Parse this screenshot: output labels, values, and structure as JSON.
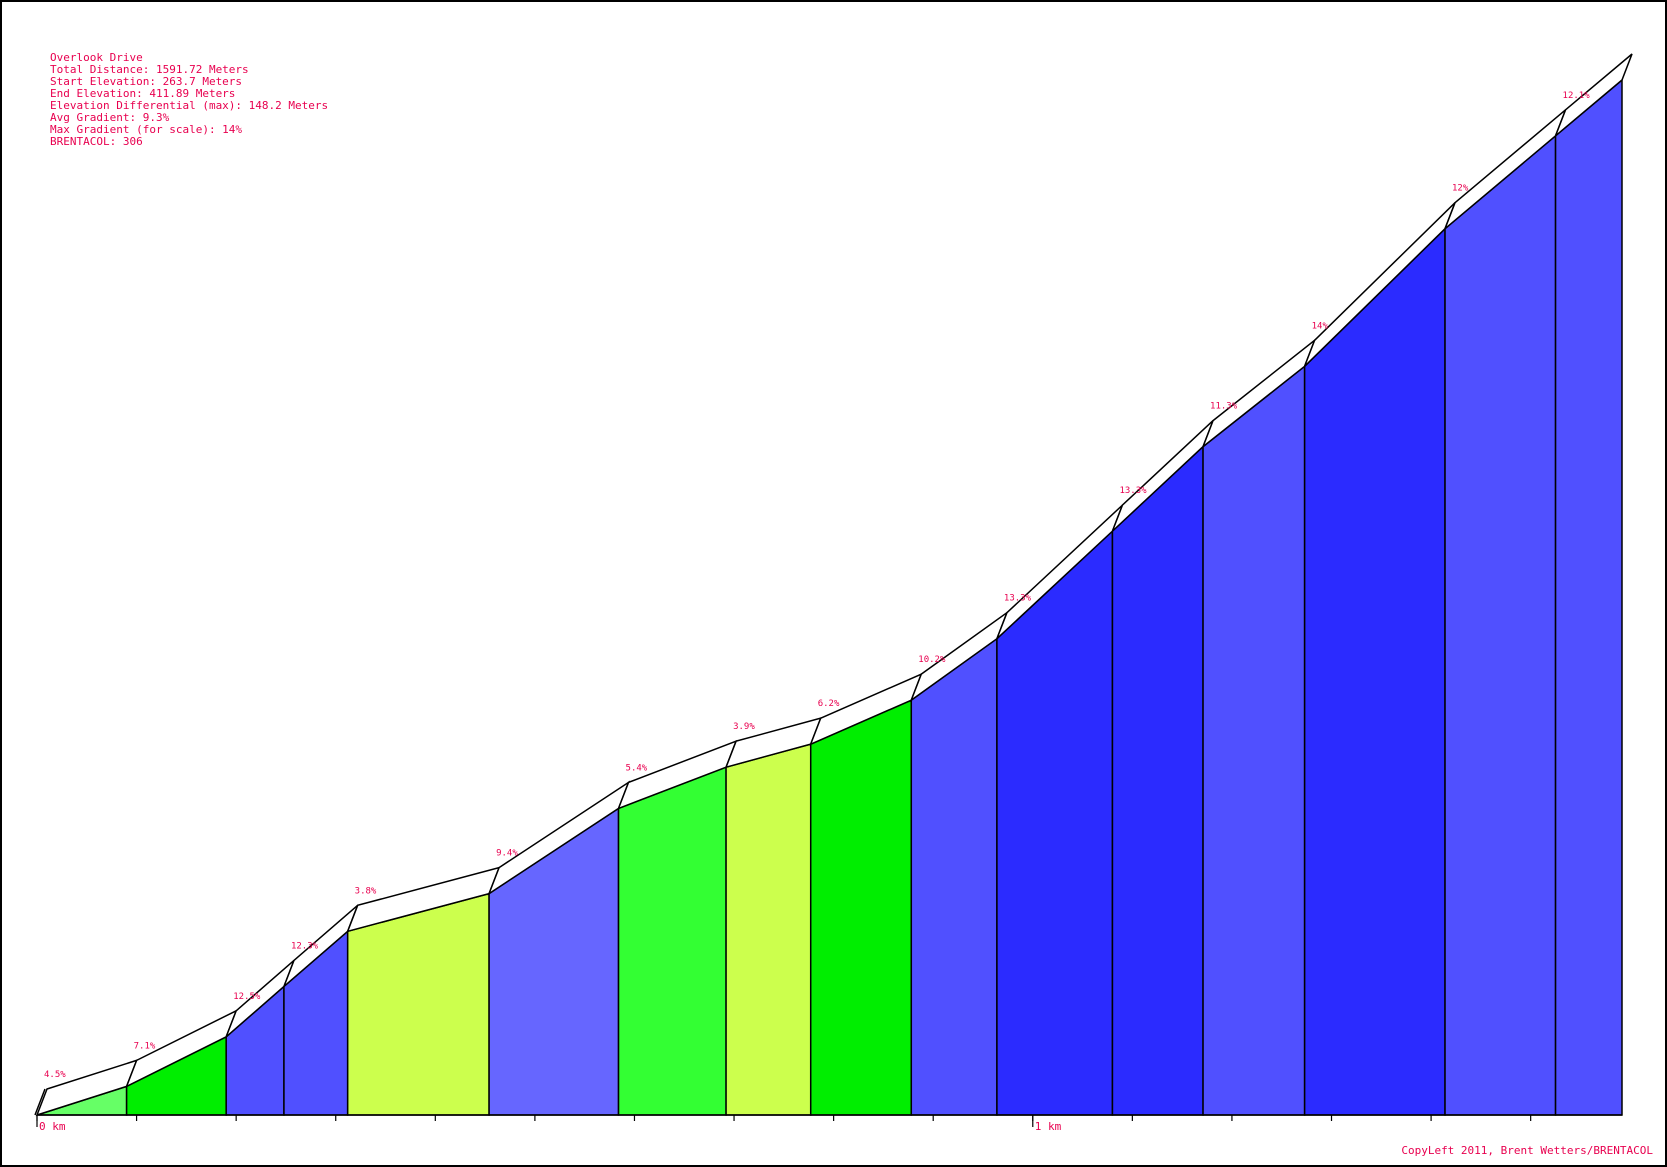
{
  "info": {
    "title": "Overlook Drive",
    "lines": [
      "Total Distance: 1591.72 Meters",
      "Start Elevation: 263.7 Meters",
      "End Elevation: 411.89 Meters",
      "Elevation Differential (max): 148.2 Meters",
      "Avg Gradient: 9.3%",
      "Max Gradient (for scale): 14%",
      "BRENTACOL: 306"
    ]
  },
  "credit": "CopyLeft 2011, Brent Wetters/BRENTACOL",
  "chart_data": {
    "type": "area",
    "title": "Overlook Drive",
    "xunit": "m",
    "xlim": [
      0,
      1591.72
    ],
    "ylim": [
      263.7,
      411.89
    ],
    "x_tick_labels": [
      {
        "x": 0,
        "label": "0 km"
      },
      {
        "x": 1000,
        "label": "1 km"
      }
    ],
    "x_tick_step": 100,
    "segments": [
      {
        "start": 0,
        "end": 90,
        "elev_start": 263.7,
        "elev_end": 267.8,
        "gradient_label": "4.5%",
        "color": "#66ff66"
      },
      {
        "start": 90,
        "end": 190,
        "elev_start": 267.8,
        "elev_end": 274.9,
        "gradient_label": "7.1%",
        "color": "#00ee00"
      },
      {
        "start": 190,
        "end": 248,
        "elev_start": 274.9,
        "elev_end": 282.1,
        "gradient_label": "12.5%",
        "color": "#5050ff"
      },
      {
        "start": 248,
        "end": 312,
        "elev_start": 282.1,
        "elev_end": 290.0,
        "gradient_label": "12.3%",
        "color": "#5050ff"
      },
      {
        "start": 312,
        "end": 454,
        "elev_start": 290.0,
        "elev_end": 295.4,
        "gradient_label": "3.8%",
        "color": "#ccff4d"
      },
      {
        "start": 454,
        "end": 584,
        "elev_start": 295.4,
        "elev_end": 307.6,
        "gradient_label": "9.4%",
        "color": "#6666ff"
      },
      {
        "start": 584,
        "end": 692,
        "elev_start": 307.6,
        "elev_end": 313.5,
        "gradient_label": "5.4%",
        "color": "#33ff33"
      },
      {
        "start": 692,
        "end": 777,
        "elev_start": 313.5,
        "elev_end": 316.8,
        "gradient_label": "3.9%",
        "color": "#ccff4d"
      },
      {
        "start": 777,
        "end": 878,
        "elev_start": 316.8,
        "elev_end": 323.1,
        "gradient_label": "6.2%",
        "color": "#00ee00"
      },
      {
        "start": 878,
        "end": 964,
        "elev_start": 323.1,
        "elev_end": 331.9,
        "gradient_label": "10.2%",
        "color": "#5050ff"
      },
      {
        "start": 964,
        "end": 1080,
        "elev_start": 331.9,
        "elev_end": 347.3,
        "gradient_label": "13.3%",
        "color": "#2b2bff"
      },
      {
        "start": 1080,
        "end": 1171,
        "elev_start": 347.3,
        "elev_end": 359.4,
        "gradient_label": "13.3%",
        "color": "#2b2bff"
      },
      {
        "start": 1171,
        "end": 1273,
        "elev_start": 359.4,
        "elev_end": 370.9,
        "gradient_label": "11.3%",
        "color": "#5050ff"
      },
      {
        "start": 1273,
        "end": 1414,
        "elev_start": 370.9,
        "elev_end": 390.6,
        "gradient_label": "14%",
        "color": "#2b2bff"
      },
      {
        "start": 1414,
        "end": 1525,
        "elev_start": 390.6,
        "elev_end": 403.9,
        "gradient_label": "12%",
        "color": "#5050ff"
      },
      {
        "start": 1525,
        "end": 1591.72,
        "elev_start": 403.9,
        "elev_end": 411.89,
        "gradient_label": "12.1%",
        "color": "#5050ff"
      }
    ]
  }
}
